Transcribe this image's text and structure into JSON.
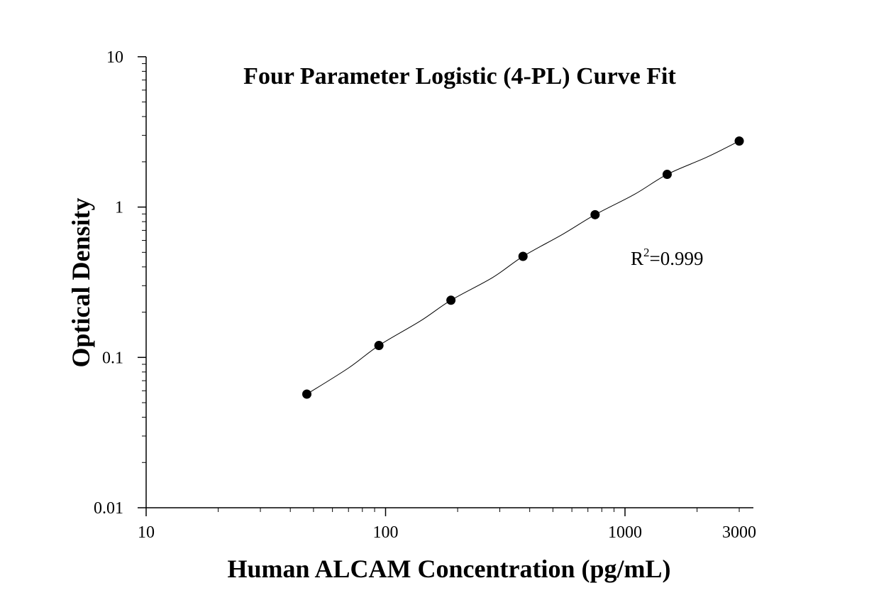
{
  "chart_data": {
    "type": "scatter",
    "title": "Four Parameter Logistic (4-PL) Curve Fit",
    "xlabel": "Human ALCAM Concentration (pg/mL)",
    "ylabel": "Optical Density",
    "x_scale": "log",
    "y_scale": "log",
    "xlim": [
      10,
      3500
    ],
    "ylim": [
      0.01,
      10
    ],
    "x_ticks": [
      10,
      100,
      1000,
      3000
    ],
    "x_tick_labels": [
      "10",
      "100",
      "1000",
      "3000"
    ],
    "y_ticks": [
      0.01,
      0.1,
      1,
      10
    ],
    "y_tick_labels": [
      "0.01",
      "0.1",
      "1",
      "10"
    ],
    "grid": false,
    "legend": "none",
    "series": [
      {
        "x": [
          46.9,
          93.8,
          187.5,
          375,
          750,
          1500,
          3000
        ],
        "y": [
          0.057,
          0.12,
          0.24,
          0.47,
          0.89,
          1.65,
          2.75
        ]
      }
    ],
    "fit_curve": {
      "type": "4PL",
      "x": [
        46.9,
        70,
        93.8,
        140,
        187.5,
        280,
        375,
        550,
        750,
        1100,
        1500,
        2200,
        3000
      ],
      "y": [
        0.057,
        0.085,
        0.12,
        0.175,
        0.24,
        0.34,
        0.47,
        0.66,
        0.89,
        1.22,
        1.65,
        2.15,
        2.75
      ]
    },
    "annotation": {
      "base": "R",
      "sup": "2",
      "value": "=0.999"
    },
    "colors": {
      "points": "#000000",
      "line": "#000000",
      "background": "#ffffff"
    }
  }
}
